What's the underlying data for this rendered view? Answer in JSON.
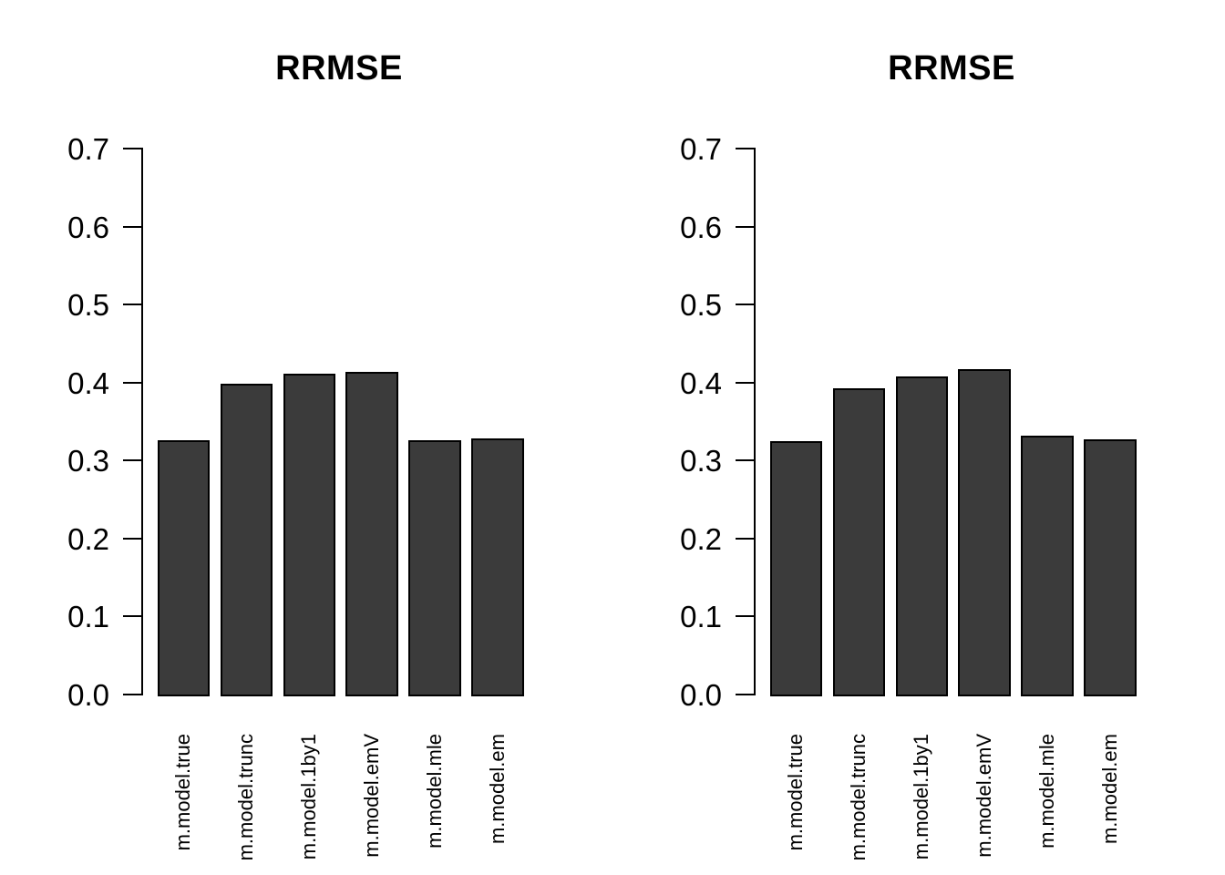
{
  "figure": {
    "background": "#ffffff",
    "text_color": "#000000",
    "axis_color": "#000000",
    "bar_fill": "#3b3b3b",
    "bar_border": "#000000"
  },
  "chart_data": [
    {
      "type": "bar",
      "title": "RRMSE",
      "categories": [
        "m.model.true",
        "m.model.trunc",
        "m.model.1by1",
        "m.model.emV",
        "m.model.mle",
        "m.model.em"
      ],
      "values": [
        0.326,
        0.399,
        0.411,
        0.414,
        0.326,
        0.328
      ],
      "xlabel": "",
      "ylabel": "",
      "ylim": [
        0,
        0.7
      ],
      "yticks": [
        0,
        0.1,
        0.2,
        0.3,
        0.4,
        0.5,
        0.6,
        0.7
      ],
      "grid": false,
      "legend": "none",
      "bar_color": "#3b3b3b"
    },
    {
      "type": "bar",
      "title": "RRMSE",
      "categories": [
        "m.model.true",
        "m.model.trunc",
        "m.model.1by1",
        "m.model.emV",
        "m.model.mle",
        "m.model.em"
      ],
      "values": [
        0.325,
        0.393,
        0.408,
        0.417,
        0.332,
        0.327
      ],
      "xlabel": "",
      "ylabel": "",
      "ylim": [
        0,
        0.7
      ],
      "yticks": [
        0,
        0.1,
        0.2,
        0.3,
        0.4,
        0.5,
        0.6,
        0.7
      ],
      "grid": false,
      "legend": "none",
      "bar_color": "#3b3b3b"
    }
  ]
}
